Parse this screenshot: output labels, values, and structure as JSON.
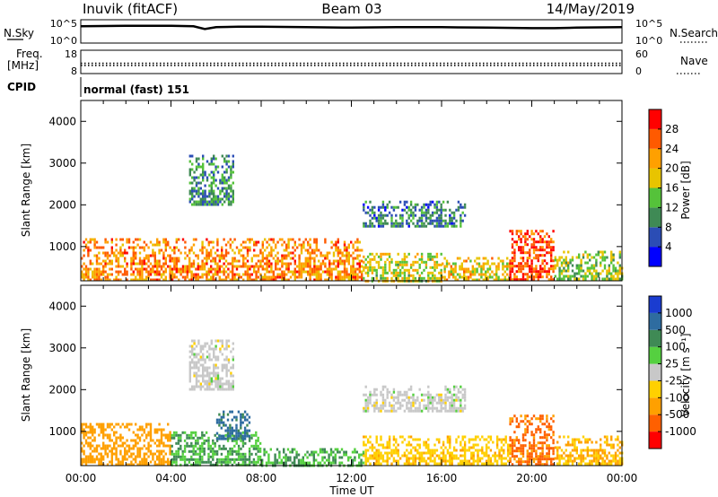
{
  "header": {
    "station": "Inuvik (fitACF)",
    "beam": "Beam 03",
    "date": "14/May/2019"
  },
  "noise_panel": {
    "left_label": "N.Sky",
    "left_ticks": [
      "10^5",
      "10^0"
    ],
    "right_label": "N.Search",
    "right_ticks": [
      "10^5",
      "10^0"
    ]
  },
  "freq_panel": {
    "left_label_1": "Freq.",
    "left_label_2": "[MHz]",
    "left_ticks": [
      "18",
      "8"
    ],
    "right_label": "Nave",
    "right_ticks": [
      "60",
      "0"
    ]
  },
  "cpid": {
    "label": "CPID",
    "value": "normal (fast) 151"
  },
  "axes": {
    "ylabel": "Slant Range [km]",
    "xlabel": "Time UT",
    "xticks": [
      "00:00",
      "04:00",
      "08:00",
      "12:00",
      "16:00",
      "20:00",
      "00:00"
    ],
    "yticks": [
      "1000",
      "2000",
      "3000",
      "4000"
    ]
  },
  "colors": {
    "power_scale": [
      "#0000ff",
      "#2b4db5",
      "#3f8a55",
      "#55c23a",
      "#e8c400",
      "#ffa000",
      "#ff5a00",
      "#ff0000"
    ],
    "velocity_scale": [
      "#ff0000",
      "#ff6000",
      "#ffa000",
      "#ffd000",
      "#c8c8c8",
      "#55d040",
      "#3f8a55",
      "#2e6ca0",
      "#1a3cd0"
    ]
  },
  "power_colorbar": {
    "label": "Power [dB]",
    "ticks": [
      "4",
      "8",
      "12",
      "16",
      "20",
      "24",
      "28"
    ]
  },
  "velocity_colorbar": {
    "label": "Velocity [m s⁻¹]",
    "ticks": [
      "-1000",
      "-500",
      "-100",
      "-25",
      "25",
      "100",
      "500",
      "1000"
    ]
  },
  "chart_data": [
    {
      "type": "line",
      "title": "N.Sky / N.Search",
      "x": [
        0,
        2,
        4,
        5,
        5.5,
        6,
        7,
        8,
        10,
        12,
        14,
        16,
        18,
        20,
        21,
        22,
        24
      ],
      "series": [
        {
          "values": [
            3.6,
            3.7,
            3.7,
            3.6,
            3.0,
            3.4,
            3.5,
            3.5,
            3.4,
            3.3,
            3.4,
            3.4,
            3.3,
            3.2,
            3.2,
            3.3,
            3.4
          ]
        }
      ],
      "ylim": [
        0,
        5
      ],
      "xlim": [
        0,
        24
      ]
    },
    {
      "type": "scatter",
      "title": "Freq. / Nave",
      "x": [
        0,
        4,
        8,
        12,
        16,
        20,
        24
      ],
      "series": [
        {
          "values": [
            11.5,
            11.5,
            11.5,
            11.5,
            11.5,
            11.5,
            11.5
          ]
        },
        {
          "values": [
            17,
            17,
            17,
            17,
            17,
            17,
            17
          ]
        }
      ],
      "ylim": [
        8,
        18
      ],
      "xlim": [
        0,
        24
      ]
    },
    {
      "type": "heatmap",
      "title": "Power",
      "xlabel": "Time UT",
      "ylabel": "Slant Range [km]",
      "xlim": [
        0,
        24
      ],
      "ylim": [
        180,
        4500
      ],
      "colorbar": "Power [dB]",
      "clim": [
        0,
        30
      ],
      "regions": [
        {
          "t": [
            0.0,
            12.5
          ],
          "r": [
            200,
            1200
          ],
          "level": 22
        },
        {
          "t": [
            12.5,
            16.0
          ],
          "r": [
            200,
            850
          ],
          "level": 16
        },
        {
          "t": [
            16.0,
            19.0
          ],
          "r": [
            200,
            750
          ],
          "level": 18
        },
        {
          "t": [
            19.0,
            21.0
          ],
          "r": [
            200,
            1400
          ],
          "level": 26
        },
        {
          "t": [
            21.0,
            24.0
          ],
          "r": [
            200,
            900
          ],
          "level": 14
        },
        {
          "t": [
            4.8,
            6.8
          ],
          "r": [
            2000,
            3200
          ],
          "level": 10
        },
        {
          "t": [
            12.5,
            17.0
          ],
          "r": [
            1500,
            2100
          ],
          "level": 8
        }
      ]
    },
    {
      "type": "heatmap",
      "title": "Velocity",
      "xlabel": "Time UT",
      "ylabel": "Slant Range [km]",
      "xlim": [
        0,
        24
      ],
      "ylim": [
        180,
        4500
      ],
      "colorbar": "Velocity [m s⁻¹]",
      "clim": [
        -1000,
        1000
      ],
      "regions": [
        {
          "t": [
            0.0,
            4.0
          ],
          "r": [
            200,
            1200
          ],
          "level": -200
        },
        {
          "t": [
            4.0,
            8.0
          ],
          "r": [
            200,
            1000
          ],
          "level": 100
        },
        {
          "t": [
            6.0,
            7.5
          ],
          "r": [
            800,
            1500
          ],
          "level": 700
        },
        {
          "t": [
            8.0,
            12.5
          ],
          "r": [
            200,
            600
          ],
          "level": 100
        },
        {
          "t": [
            12.5,
            19.0
          ],
          "r": [
            200,
            900
          ],
          "level": -80
        },
        {
          "t": [
            19.0,
            21.0
          ],
          "r": [
            200,
            1400
          ],
          "level": -600
        },
        {
          "t": [
            21.0,
            24.0
          ],
          "r": [
            200,
            900
          ],
          "level": -100
        },
        {
          "t": [
            4.8,
            6.8
          ],
          "r": [
            2000,
            3200
          ],
          "level": 0
        },
        {
          "t": [
            12.5,
            17.0
          ],
          "r": [
            1500,
            2100
          ],
          "level": 0
        }
      ]
    }
  ]
}
